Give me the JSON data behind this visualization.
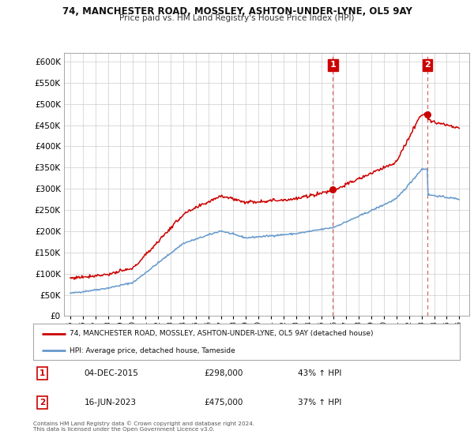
{
  "title": "74, MANCHESTER ROAD, MOSSLEY, ASHTON-UNDER-LYNE, OL5 9AY",
  "subtitle": "Price paid vs. HM Land Registry's House Price Index (HPI)",
  "legend_line1": "74, MANCHESTER ROAD, MOSSLEY, ASHTON-UNDER-LYNE, OL5 9AY (detached house)",
  "legend_line2": "HPI: Average price, detached house, Tameside",
  "annotation1_date": "04-DEC-2015",
  "annotation1_price": "£298,000",
  "annotation1_hpi": "43% ↑ HPI",
  "annotation2_date": "16-JUN-2023",
  "annotation2_price": "£475,000",
  "annotation2_hpi": "37% ↑ HPI",
  "footnote": "Contains HM Land Registry data © Crown copyright and database right 2024.\nThis data is licensed under the Open Government Licence v3.0.",
  "ylim": [
    0,
    620000
  ],
  "yticks": [
    0,
    50000,
    100000,
    150000,
    200000,
    250000,
    300000,
    350000,
    400000,
    450000,
    500000,
    550000,
    600000
  ],
  "sale1_year": 2015.92,
  "sale1_value": 298000,
  "sale2_year": 2023.46,
  "sale2_value": 475000,
  "red_color": "#cc0000",
  "blue_color": "#6699cc",
  "vline_color": "#dd6666",
  "background_color": "#ffffff",
  "grid_color": "#cccccc",
  "xlim_left": 1994.5,
  "xlim_right": 2026.8
}
